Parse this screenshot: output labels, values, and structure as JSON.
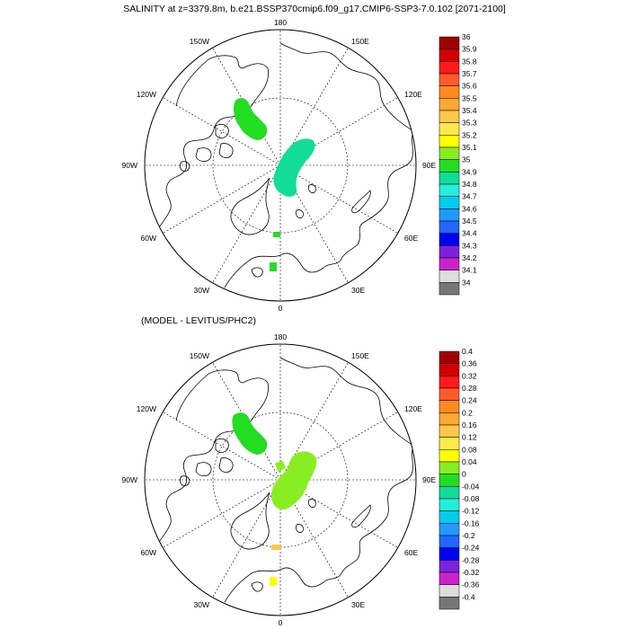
{
  "top_panel": {
    "title": "SALINITY at z=3379.8m, b.e21.BSSP370cmip6.f09_g17.CMIP6-SSP3-7.0.102 [2071-2100]",
    "longitude_labels": [
      "180",
      "150E",
      "120E",
      "90E",
      "60E",
      "30E",
      "0",
      "30W",
      "60W",
      "90W",
      "120W",
      "150W"
    ],
    "colorbar": {
      "labels": [
        "36",
        "35.9",
        "35.8",
        "35.7",
        "35.6",
        "35.5",
        "35.4",
        "35.3",
        "35.2",
        "35.1",
        "35",
        "34.9",
        "34.8",
        "34.7",
        "34.6",
        "34.5",
        "34.4",
        "34.3",
        "34.2",
        "34.1",
        "34"
      ],
      "colors": [
        "#a00000",
        "#d20000",
        "#ff1a1a",
        "#ff5a2a",
        "#ff8a1e",
        "#ffa833",
        "#ffc84a",
        "#ffe84a",
        "#ffff00",
        "#88ee22",
        "#22dd22",
        "#11dd99",
        "#22eedd",
        "#00ccee",
        "#2299ff",
        "#2266ff",
        "#0000ee",
        "#7a22dd",
        "#cc22cc",
        "#dddddd",
        "#777777"
      ]
    }
  },
  "bottom_panel": {
    "title": "(MODEL - LEVITUS/PHC2)",
    "longitude_labels": [
      "180",
      "150E",
      "120E",
      "90E",
      "60E",
      "30E",
      "0",
      "30W",
      "60W",
      "90W",
      "120W",
      "150W"
    ],
    "colorbar": {
      "labels": [
        "0.4",
        "0.36",
        "0.32",
        "0.28",
        "0.24",
        "0.2",
        "0.16",
        "0.12",
        "0.08",
        "0.04",
        "0",
        "-0.04",
        "-0.08",
        "-0.12",
        "-0.16",
        "-0.2",
        "-0.24",
        "-0.28",
        "-0.32",
        "-0.36",
        "-0.4"
      ],
      "colors": [
        "#a00000",
        "#d20000",
        "#ff1a1a",
        "#ff5a2a",
        "#ff8a1e",
        "#ffa833",
        "#ffc84a",
        "#ffe84a",
        "#ffff00",
        "#88ee22",
        "#22dd22",
        "#11dd99",
        "#22eedd",
        "#00ccee",
        "#2299ff",
        "#2266ff",
        "#0000ee",
        "#7a22dd",
        "#cc22cc",
        "#dddddd",
        "#777777"
      ]
    }
  }
}
